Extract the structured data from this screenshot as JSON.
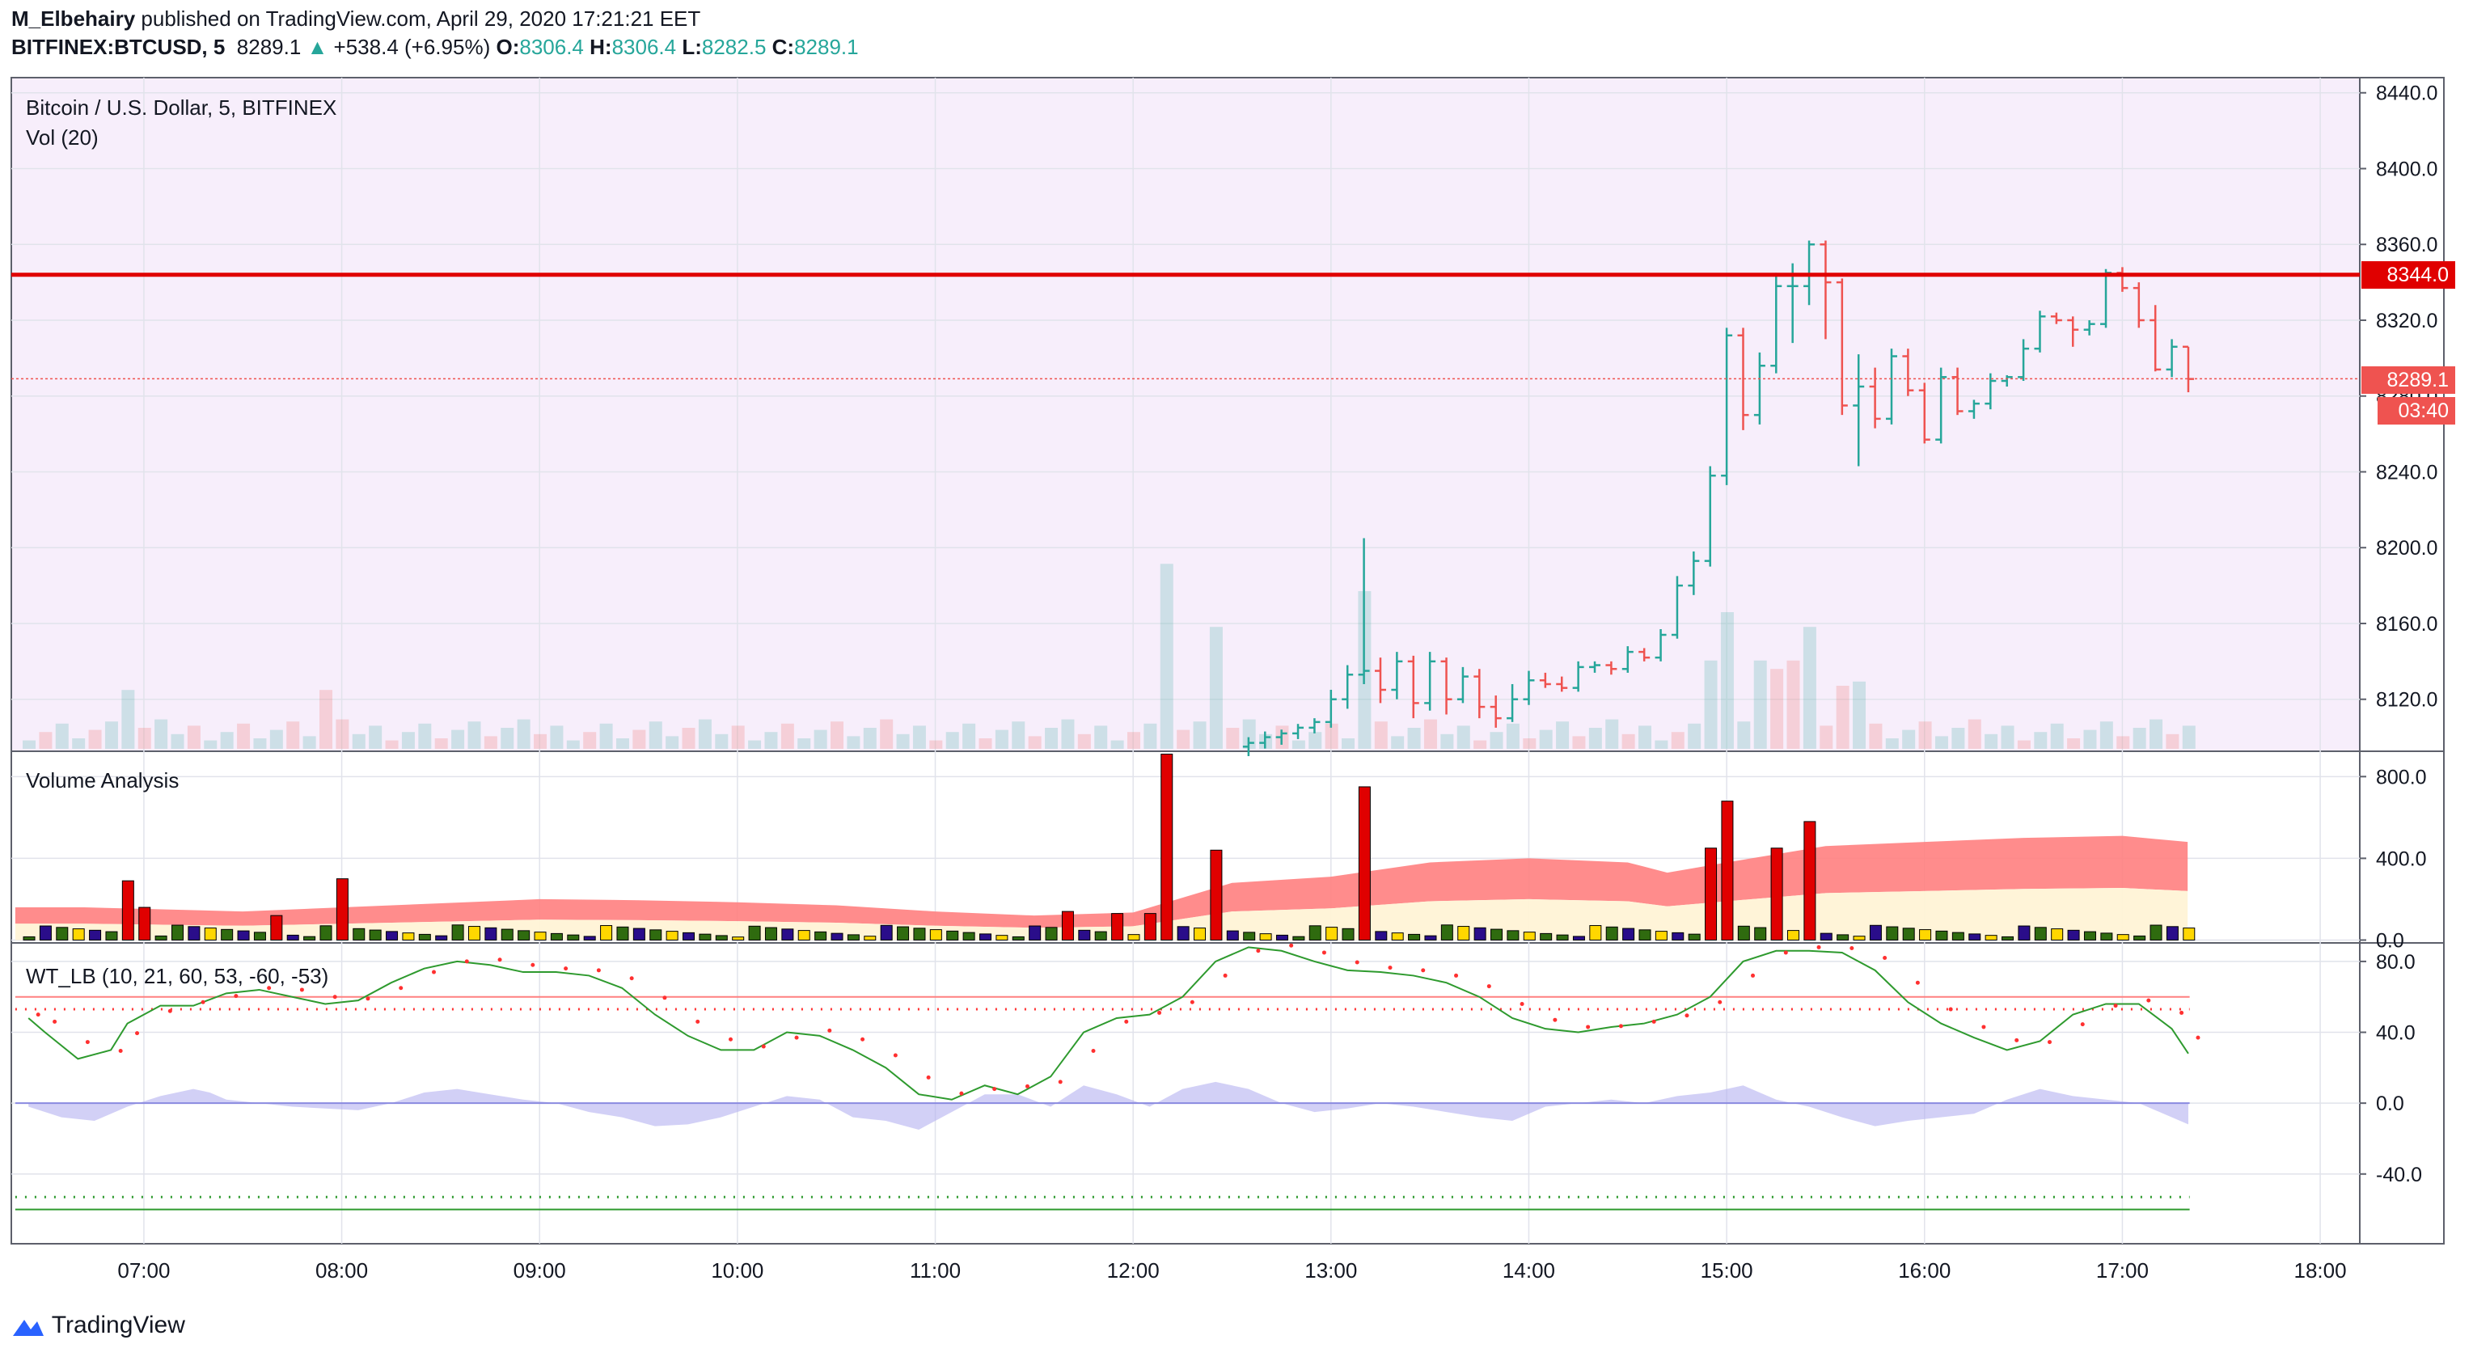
{
  "header": {
    "author": "M_Elbehairy",
    "published_text": "published on TradingView.com, April 29, 2020 17:21:21 EET",
    "symbol": "BITFINEX:BTCUSD, 5",
    "last": "8289.1",
    "arrow": "▲",
    "change": "+538.4 (+6.95%)",
    "o_label": "O:",
    "o_value": "8306.4",
    "h_label": "H:",
    "h_value": "8306.4",
    "l_label": "L:",
    "l_value": "8282.5",
    "c_label": "C:",
    "c_value": "8289.1"
  },
  "panes": {
    "main_title": "Bitcoin / U.S. Dollar, 5, BITFINEX",
    "vol_title": "Vol (20)",
    "va_title": "Volume Analysis",
    "wt_title": "WT_LB (10, 21, 60, 53, -60, -53)"
  },
  "labels": {
    "resistance": "8344.0",
    "last_price": "8289.1",
    "countdown": "03:40"
  },
  "footer": {
    "brand": "TradingView"
  },
  "colors": {
    "up": "#26a69a",
    "down": "#ef5350",
    "resistance": "#e00000",
    "price_bg": "#f7eefb",
    "cloud": "#ff7f7f",
    "wt_green": "#2e9a2e",
    "wt_red_dots": "#ff3030",
    "wt_fill": "#b4b0f0"
  },
  "chart_data": [
    {
      "type": "candlestick",
      "title": "Bitcoin / U.S. Dollar, 5, BITFINEX",
      "x_ticks": [
        "07:00",
        "08:00",
        "09:00",
        "10:00",
        "11:00",
        "12:00",
        "13:00",
        "14:00",
        "15:00",
        "16:00",
        "17:00",
        "18:00"
      ],
      "y_ticks": [
        8120.0,
        8160.0,
        8200.0,
        8240.0,
        8280.0,
        8320.0,
        8360.0,
        8400.0,
        8440.0
      ],
      "ylim": [
        8093,
        8448
      ],
      "xlim_hours": [
        6.33,
        18.2
      ],
      "horizontal_line": 8344.0,
      "last_price": 8289.1,
      "candles_hhmm": [
        [
          "12:35",
          8095,
          8100,
          8090,
          8097
        ],
        [
          "12:40",
          8097,
          8103,
          8094,
          8100
        ],
        [
          "12:45",
          8100,
          8104,
          8096,
          8102
        ],
        [
          "12:50",
          8102,
          8107,
          8099,
          8105
        ],
        [
          "12:55",
          8105,
          8110,
          8102,
          8108
        ],
        [
          "13:00",
          8108,
          8125,
          8105,
          8120
        ],
        [
          "13:05",
          8120,
          8138,
          8115,
          8133
        ],
        [
          "13:10",
          8133,
          8205,
          8128,
          8135
        ],
        [
          "13:15",
          8135,
          8142,
          8118,
          8125
        ],
        [
          "13:20",
          8125,
          8145,
          8120,
          8140
        ],
        [
          "13:25",
          8140,
          8143,
          8110,
          8118
        ],
        [
          "13:30",
          8118,
          8145,
          8114,
          8140
        ],
        [
          "13:35",
          8140,
          8142,
          8112,
          8120
        ],
        [
          "13:40",
          8120,
          8137,
          8118,
          8132
        ],
        [
          "13:45",
          8132,
          8136,
          8110,
          8116
        ],
        [
          "13:50",
          8116,
          8122,
          8105,
          8110
        ],
        [
          "13:55",
          8110,
          8128,
          8108,
          8120
        ],
        [
          "14:00",
          8120,
          8135,
          8117,
          8130
        ],
        [
          "14:05",
          8130,
          8134,
          8126,
          8128
        ],
        [
          "14:10",
          8128,
          8132,
          8124,
          8126
        ],
        [
          "14:15",
          8126,
          8140,
          8124,
          8137
        ],
        [
          "14:20",
          8137,
          8140,
          8134,
          8138
        ],
        [
          "14:25",
          8138,
          8140,
          8133,
          8136
        ],
        [
          "14:30",
          8136,
          8148,
          8134,
          8145
        ],
        [
          "14:35",
          8145,
          8147,
          8140,
          8142
        ],
        [
          "14:40",
          8142,
          8157,
          8140,
          8154
        ],
        [
          "14:45",
          8154,
          8185,
          8152,
          8180
        ],
        [
          "14:50",
          8180,
          8198,
          8175,
          8193
        ],
        [
          "14:55",
          8193,
          8243,
          8190,
          8238
        ],
        [
          "15:00",
          8238,
          8316,
          8233,
          8312
        ],
        [
          "15:05",
          8312,
          8316,
          8262,
          8270
        ],
        [
          "15:10",
          8270,
          8303,
          8265,
          8296
        ],
        [
          "15:15",
          8296,
          8345,
          8292,
          8338
        ],
        [
          "15:20",
          8338,
          8350,
          8308,
          8338
        ],
        [
          "15:25",
          8338,
          8362,
          8328,
          8360
        ],
        [
          "15:30",
          8360,
          8362,
          8310,
          8340
        ],
        [
          "15:35",
          8340,
          8342,
          8270,
          8275
        ],
        [
          "15:40",
          8275,
          8302,
          8243,
          8285
        ],
        [
          "15:45",
          8285,
          8295,
          8263,
          8268
        ],
        [
          "15:50",
          8268,
          8305,
          8265,
          8301
        ],
        [
          "15:55",
          8301,
          8305,
          8280,
          8283
        ],
        [
          "16:00",
          8283,
          8287,
          8255,
          8257
        ],
        [
          "16:05",
          8257,
          8295,
          8255,
          8290
        ],
        [
          "16:10",
          8290,
          8295,
          8270,
          8272
        ],
        [
          "16:15",
          8272,
          8278,
          8268,
          8276
        ],
        [
          "16:20",
          8276,
          8292,
          8273,
          8288
        ],
        [
          "16:25",
          8288,
          8291,
          8285,
          8290
        ],
        [
          "16:30",
          8290,
          8310,
          8288,
          8305
        ],
        [
          "16:35",
          8305,
          8325,
          8303,
          8322
        ],
        [
          "16:40",
          8322,
          8324,
          8318,
          8320
        ],
        [
          "16:45",
          8320,
          8322,
          8306,
          8315
        ],
        [
          "16:50",
          8315,
          8320,
          8312,
          8318
        ],
        [
          "16:55",
          8318,
          8347,
          8316,
          8345
        ],
        [
          "17:00",
          8345,
          8348,
          8335,
          8337
        ],
        [
          "17:05",
          8337,
          8340,
          8316,
          8320
        ],
        [
          "17:10",
          8320,
          8328,
          8293,
          8294
        ],
        [
          "17:15",
          8294,
          8310,
          8290,
          8306
        ],
        [
          "17:20",
          8306,
          8306,
          8282,
          8289
        ]
      ],
      "volume_bars": [
        {
          "t": "06:55",
          "v": 28,
          "up": true
        },
        {
          "t": "07:55",
          "v": 28,
          "up": false
        },
        {
          "t": "12:10",
          "v": 88,
          "up": true
        },
        {
          "t": "12:25",
          "v": 58,
          "up": true
        },
        {
          "t": "13:10",
          "v": 75,
          "up": true
        },
        {
          "t": "14:55",
          "v": 42,
          "up": true
        },
        {
          "t": "15:00",
          "v": 65,
          "up": true
        },
        {
          "t": "15:10",
          "v": 42,
          "up": true
        },
        {
          "t": "15:15",
          "v": 38,
          "up": false
        },
        {
          "t": "15:20",
          "v": 42,
          "up": false
        },
        {
          "t": "15:25",
          "v": 58,
          "up": true
        },
        {
          "t": "15:35",
          "v": 30,
          "up": false
        },
        {
          "t": "15:40",
          "v": 32,
          "up": true
        }
      ]
    },
    {
      "type": "bar",
      "title": "Volume Analysis",
      "y_ticks": [
        0.0,
        400.0,
        800.0
      ],
      "ylim": [
        -10,
        920
      ],
      "spikes": [
        {
          "t": "06:55",
          "v": 290
        },
        {
          "t": "07:00",
          "v": 160
        },
        {
          "t": "07:40",
          "v": 120
        },
        {
          "t": "08:00",
          "v": 300
        },
        {
          "t": "11:40",
          "v": 140
        },
        {
          "t": "11:55",
          "v": 130
        },
        {
          "t": "12:05",
          "v": 130
        },
        {
          "t": "12:10",
          "v": 910
        },
        {
          "t": "12:25",
          "v": 440
        },
        {
          "t": "13:10",
          "v": 750
        },
        {
          "t": "14:55",
          "v": 450
        },
        {
          "t": "15:00",
          "v": 680
        },
        {
          "t": "15:15",
          "v": 450
        },
        {
          "t": "15:25",
          "v": 580
        }
      ]
    },
    {
      "type": "line",
      "title": "WT_LB (10, 21, 60, 53, -60, -53)",
      "y_ticks": [
        -40.0,
        0.0,
        40.0,
        80.0
      ],
      "ylim": [
        -78,
        90
      ],
      "levels": [
        60,
        53,
        -53,
        -60
      ],
      "series": [
        {
          "values_hhmm": [
            [
              "06:25",
              48
            ],
            [
              "06:30",
              40
            ],
            [
              "06:40",
              25
            ],
            [
              "06:50",
              30
            ],
            [
              "06:55",
              45
            ],
            [
              "07:05",
              55
            ],
            [
              "07:15",
              55
            ],
            [
              "07:25",
              62
            ],
            [
              "07:35",
              64
            ],
            [
              "07:45",
              60
            ],
            [
              "07:55",
              56
            ],
            [
              "08:05",
              58
            ],
            [
              "08:15",
              68
            ],
            [
              "08:25",
              76
            ],
            [
              "08:35",
              80
            ],
            [
              "08:45",
              78
            ],
            [
              "08:55",
              74
            ],
            [
              "09:05",
              74
            ],
            [
              "09:15",
              72
            ],
            [
              "09:25",
              65
            ],
            [
              "09:35",
              50
            ],
            [
              "09:45",
              38
            ],
            [
              "09:55",
              30
            ],
            [
              "10:05",
              30
            ],
            [
              "10:15",
              40
            ],
            [
              "10:25",
              38
            ],
            [
              "10:35",
              30
            ],
            [
              "10:45",
              20
            ],
            [
              "10:55",
              5
            ],
            [
              "11:05",
              2
            ],
            [
              "11:15",
              10
            ],
            [
              "11:25",
              5
            ],
            [
              "11:35",
              15
            ],
            [
              "11:45",
              40
            ],
            [
              "11:55",
              48
            ],
            [
              "12:05",
              50
            ],
            [
              "12:15",
              60
            ],
            [
              "12:25",
              80
            ],
            [
              "12:35",
              88
            ],
            [
              "12:45",
              86
            ],
            [
              "12:55",
              80
            ],
            [
              "13:05",
              75
            ],
            [
              "13:15",
              74
            ],
            [
              "13:25",
              72
            ],
            [
              "13:35",
              68
            ],
            [
              "13:45",
              60
            ],
            [
              "13:55",
              48
            ],
            [
              "14:05",
              42
            ],
            [
              "14:15",
              40
            ],
            [
              "14:25",
              43
            ],
            [
              "14:35",
              45
            ],
            [
              "14:45",
              50
            ],
            [
              "14:55",
              60
            ],
            [
              "15:05",
              80
            ],
            [
              "15:15",
              86
            ],
            [
              "15:25",
              86
            ],
            [
              "15:35",
              85
            ],
            [
              "15:45",
              75
            ],
            [
              "15:55",
              57
            ],
            [
              "16:05",
              45
            ],
            [
              "16:15",
              37
            ],
            [
              "16:25",
              30
            ],
            [
              "16:35",
              35
            ],
            [
              "16:45",
              50
            ],
            [
              "16:55",
              56
            ],
            [
              "17:05",
              56
            ],
            [
              "17:15",
              42
            ],
            [
              "17:20",
              28
            ]
          ]
        },
        {
          "values_hhmm": [
            [
              "06:25",
              -2
            ],
            [
              "06:35",
              -8
            ],
            [
              "06:45",
              -10
            ],
            [
              "06:55",
              -2
            ],
            [
              "07:05",
              4
            ],
            [
              "07:15",
              8
            ],
            [
              "07:20",
              6
            ],
            [
              "07:25",
              2
            ],
            [
              "07:35",
              0
            ],
            [
              "07:45",
              -2
            ],
            [
              "07:55",
              -3
            ],
            [
              "08:05",
              -4
            ],
            [
              "08:15",
              0
            ],
            [
              "08:25",
              6
            ],
            [
              "08:35",
              8
            ],
            [
              "08:45",
              5
            ],
            [
              "08:55",
              2
            ],
            [
              "09:05",
              0
            ],
            [
              "09:15",
              -5
            ],
            [
              "09:25",
              -8
            ],
            [
              "09:35",
              -13
            ],
            [
              "09:45",
              -12
            ],
            [
              "09:55",
              -8
            ],
            [
              "10:05",
              -2
            ],
            [
              "10:15",
              4
            ],
            [
              "10:25",
              2
            ],
            [
              "10:35",
              -8
            ],
            [
              "10:45",
              -10
            ],
            [
              "10:55",
              -15
            ],
            [
              "11:05",
              -5
            ],
            [
              "11:15",
              5
            ],
            [
              "11:25",
              5
            ],
            [
              "11:35",
              -2
            ],
            [
              "11:45",
              10
            ],
            [
              "11:55",
              5
            ],
            [
              "12:05",
              -2
            ],
            [
              "12:15",
              8
            ],
            [
              "12:25",
              12
            ],
            [
              "12:35",
              8
            ],
            [
              "12:45",
              0
            ],
            [
              "12:55",
              -5
            ],
            [
              "13:05",
              -3
            ],
            [
              "13:15",
              0
            ],
            [
              "13:25",
              -2
            ],
            [
              "13:35",
              -5
            ],
            [
              "13:45",
              -8
            ],
            [
              "13:55",
              -10
            ],
            [
              "14:05",
              -2
            ],
            [
              "14:15",
              0
            ],
            [
              "14:25",
              2
            ],
            [
              "14:35",
              0
            ],
            [
              "14:45",
              4
            ],
            [
              "14:55",
              6
            ],
            [
              "15:05",
              10
            ],
            [
              "15:15",
              2
            ],
            [
              "15:25",
              -2
            ],
            [
              "15:35",
              -8
            ],
            [
              "15:45",
              -13
            ],
            [
              "15:55",
              -10
            ],
            [
              "16:05",
              -8
            ],
            [
              "16:15",
              -6
            ],
            [
              "16:25",
              2
            ],
            [
              "16:35",
              8
            ],
            [
              "16:45",
              4
            ],
            [
              "16:55",
              2
            ],
            [
              "17:05",
              0
            ],
            [
              "17:15",
              -8
            ],
            [
              "17:20",
              -12
            ]
          ]
        }
      ]
    }
  ]
}
